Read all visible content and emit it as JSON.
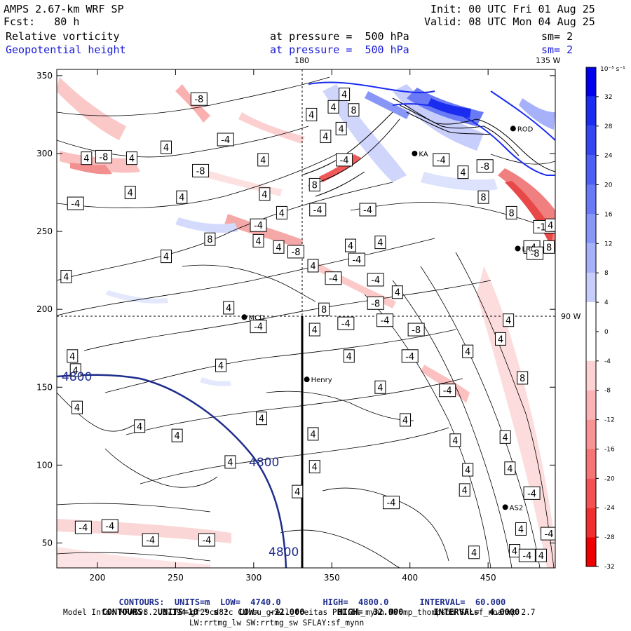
{
  "header": {
    "model": "AMPS 2.67-km WRF SP",
    "fcst": "Fcst:   80 h",
    "init": "Init: 00 UTC Fri 01 Aug 25",
    "valid": "Valid: 08 UTC Mon 04 Aug 25",
    "field1": "Relative vorticity",
    "field2": "Geopotential height",
    "pressure1": "at pressure =  500 hPa",
    "pressure2": "at pressure =  500 hPa",
    "sm1": "sm= 2",
    "sm2": "sm= 2"
  },
  "chart_data": {
    "type": "heatmap",
    "x_ticks": [
      200,
      250,
      300,
      350,
      400,
      450
    ],
    "y_ticks": [
      50,
      100,
      150,
      200,
      250,
      300,
      350
    ],
    "xlim": [
      174,
      493
    ],
    "ylim": [
      34,
      354
    ],
    "longitude_labels": {
      "top_180": "180",
      "top_135w": "135 W",
      "right_90w": "90 W"
    },
    "stations": [
      {
        "name": "MCD",
        "x": 294,
        "y": 195
      },
      {
        "name": "Henry",
        "x": 334,
        "y": 155
      },
      {
        "name": "LRC",
        "x": 469,
        "y": 239
      },
      {
        "name": "AS2",
        "x": 461,
        "y": 73
      },
      {
        "name": "ROD",
        "x": 466,
        "y": 316
      },
      {
        "name": "KA",
        "x": 403,
        "y": 300
      }
    ],
    "height_contour_value": "4800",
    "vorticity_labels": [
      {
        "v": "4",
        "x": 193,
        "y": 297
      },
      {
        "v": "-8",
        "x": 204,
        "y": 298
      },
      {
        "v": "4",
        "x": 222,
        "y": 297
      },
      {
        "v": "4",
        "x": 244,
        "y": 304
      },
      {
        "v": "-4",
        "x": 282,
        "y": 309
      },
      {
        "v": "-8",
        "x": 265,
        "y": 335
      },
      {
        "v": "4",
        "x": 254,
        "y": 272
      },
      {
        "v": "-8",
        "x": 266,
        "y": 289
      },
      {
        "v": "-4",
        "x": 186,
        "y": 268
      },
      {
        "v": "4",
        "x": 221,
        "y": 275
      },
      {
        "v": "4",
        "x": 306,
        "y": 296
      },
      {
        "v": "4",
        "x": 307,
        "y": 274
      },
      {
        "v": "-4",
        "x": 341,
        "y": 264
      },
      {
        "v": "-4",
        "x": 373,
        "y": 264
      },
      {
        "v": "4",
        "x": 351,
        "y": 330
      },
      {
        "v": "4",
        "x": 358,
        "y": 338
      },
      {
        "v": "8",
        "x": 364,
        "y": 328
      },
      {
        "v": "4",
        "x": 356,
        "y": 316
      },
      {
        "v": "4",
        "x": 337,
        "y": 325
      },
      {
        "v": "4",
        "x": 346,
        "y": 311
      },
      {
        "v": "-4",
        "x": 358,
        "y": 296
      },
      {
        "v": "8",
        "x": 339,
        "y": 280
      },
      {
        "v": "4",
        "x": 318,
        "y": 262
      },
      {
        "v": "-4",
        "x": 303,
        "y": 254
      },
      {
        "v": "8",
        "x": 272,
        "y": 245
      },
      {
        "v": "4",
        "x": 303,
        "y": 244
      },
      {
        "v": "4",
        "x": 316,
        "y": 240
      },
      {
        "v": "-8",
        "x": 327,
        "y": 237
      },
      {
        "v": "4",
        "x": 244,
        "y": 234
      },
      {
        "v": "4",
        "x": 180,
        "y": 221
      },
      {
        "v": "4",
        "x": 338,
        "y": 228
      },
      {
        "v": "-4",
        "x": 366,
        "y": 232
      },
      {
        "v": "-4",
        "x": 351,
        "y": 220
      },
      {
        "v": "-4",
        "x": 378,
        "y": 219
      },
      {
        "v": "4",
        "x": 362,
        "y": 241
      },
      {
        "v": "4",
        "x": 381,
        "y": 243
      },
      {
        "v": "4",
        "x": 392,
        "y": 211
      },
      {
        "v": "-8",
        "x": 378,
        "y": 204
      },
      {
        "v": "8",
        "x": 345,
        "y": 200
      },
      {
        "v": "4",
        "x": 284,
        "y": 201
      },
      {
        "v": "-4",
        "x": 303,
        "y": 189
      },
      {
        "v": "4",
        "x": 339,
        "y": 187
      },
      {
        "v": "-4",
        "x": 359,
        "y": 191
      },
      {
        "v": "-4",
        "x": 384,
        "y": 193
      },
      {
        "v": "-8",
        "x": 404,
        "y": 187
      },
      {
        "v": "-4",
        "x": 400,
        "y": 170
      },
      {
        "v": "4",
        "x": 463,
        "y": 193
      },
      {
        "v": "4",
        "x": 458,
        "y": 181
      },
      {
        "v": "4",
        "x": 361,
        "y": 170
      },
      {
        "v": "4",
        "x": 437,
        "y": 173
      },
      {
        "v": "4",
        "x": 184,
        "y": 170
      },
      {
        "v": "4",
        "x": 186,
        "y": 161
      },
      {
        "v": "4",
        "x": 279,
        "y": 164
      },
      {
        "v": "4",
        "x": 381,
        "y": 150
      },
      {
        "v": "-4",
        "x": 424,
        "y": 148
      },
      {
        "v": "8",
        "x": 472,
        "y": 156
      },
      {
        "v": "4",
        "x": 187,
        "y": 137
      },
      {
        "v": "4",
        "x": 227,
        "y": 125
      },
      {
        "v": "4",
        "x": 251,
        "y": 119
      },
      {
        "v": "4",
        "x": 305,
        "y": 130
      },
      {
        "v": "4",
        "x": 338,
        "y": 120
      },
      {
        "v": "4",
        "x": 339,
        "y": 99
      },
      {
        "v": "4",
        "x": 397,
        "y": 129
      },
      {
        "v": "4",
        "x": 429,
        "y": 116
      },
      {
        "v": "4",
        "x": 461,
        "y": 118
      },
      {
        "v": "4",
        "x": 437,
        "y": 97
      },
      {
        "v": "4",
        "x": 464,
        "y": 98
      },
      {
        "v": "4",
        "x": 285,
        "y": 102
      },
      {
        "v": "4",
        "x": 328,
        "y": 83
      },
      {
        "v": "4",
        "x": 435,
        "y": 84
      },
      {
        "v": "-4",
        "x": 478,
        "y": 82
      },
      {
        "v": "-4",
        "x": 388,
        "y": 76
      },
      {
        "v": "-4",
        "x": 191,
        "y": 60
      },
      {
        "v": "-4",
        "x": 208,
        "y": 61
      },
      {
        "v": "-4",
        "x": 234,
        "y": 52
      },
      {
        "v": "-4",
        "x": 270,
        "y": 52
      },
      {
        "v": "4",
        "x": 471,
        "y": 59
      },
      {
        "v": "4",
        "x": 467,
        "y": 45
      },
      {
        "v": "-4",
        "x": 475,
        "y": 42
      },
      {
        "v": "-4",
        "x": 489,
        "y": 56
      },
      {
        "v": "4",
        "x": 441,
        "y": 44
      },
      {
        "v": "4",
        "x": 484,
        "y": 42
      },
      {
        "v": "-4",
        "x": 478,
        "y": 240
      },
      {
        "v": "-12",
        "x": 486,
        "y": 253
      },
      {
        "v": "-8",
        "x": 480,
        "y": 236
      },
      {
        "v": "8",
        "x": 489,
        "y": 240
      },
      {
        "v": "8",
        "x": 465,
        "y": 262
      },
      {
        "v": "8",
        "x": 447,
        "y": 272
      },
      {
        "v": "-4",
        "x": 420,
        "y": 296
      },
      {
        "v": "4",
        "x": 434,
        "y": 288
      },
      {
        "v": "-8",
        "x": 448,
        "y": 292
      },
      {
        "v": "4",
        "x": 490,
        "y": 254
      }
    ],
    "colorbar": {
      "unit_label": "10⁻⁵ s⁻¹",
      "ticks": [
        "32",
        "28",
        "24",
        "20",
        "16",
        "12",
        "8",
        "4",
        "0",
        "-4",
        "-8",
        "-12",
        "-16",
        "-20",
        "-24",
        "-28",
        "-32"
      ],
      "colors": [
        "#0000ee",
        "#1a2cf0",
        "#3346f2",
        "#4d5ff4",
        "#6a7af6",
        "#8896f8",
        "#a7b1fa",
        "#c8cefc",
        "#ffffff",
        "#ffffff",
        "#fcd2d2",
        "#fab4b4",
        "#f89494",
        "#f57474",
        "#f35252",
        "#f02e2e",
        "#ee0000"
      ]
    }
  },
  "footer": {
    "line1_a": "CONTOURS:  UNITS=m  LOW=  4740.0",
    "line1_b": "HIGH=  4800.0",
    "line1_c": "INTERVAL=  60.000",
    "line2_a": "CONTOURS:  UNITS=10⁻⁵ s⁻¹  LOW=  -32.000",
    "line2_b": "HIGH=  32.000",
    "line2_c": "INTERVAL=  4.0000",
    "line3": "Model Info: MPASv8.2.3-194-gf29cd82c CU:cu_grell_freitas PBL:bl_mynn MP:mp_thompson SF:sf_noahmp 2.7",
    "line4": "LW:rrtmg_lw SW:rrtmg_sw SFLAY:sf_mynn"
  }
}
